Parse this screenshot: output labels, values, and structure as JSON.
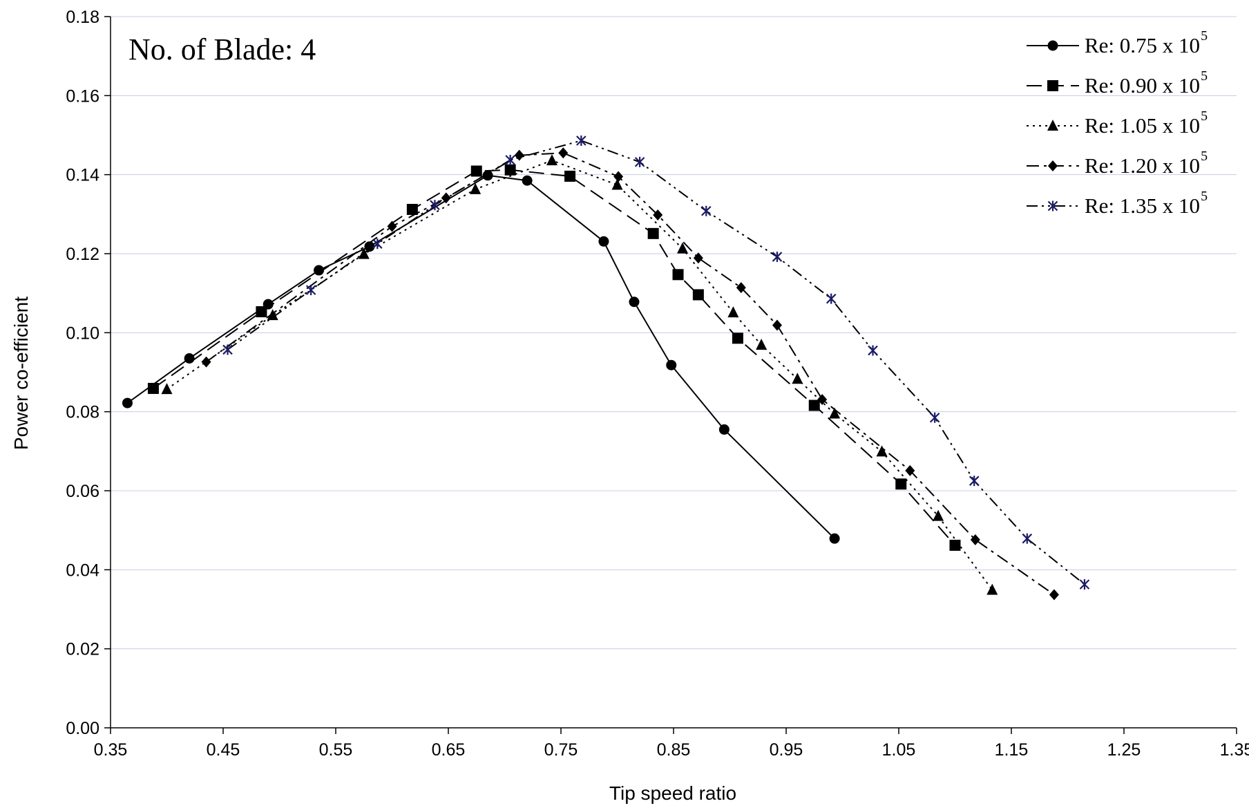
{
  "chart_data": {
    "type": "line",
    "annotation": "No. of Blade: 4",
    "xlabel": "Tip speed ratio",
    "ylabel": "Power co-efficient",
    "xlim": [
      0.35,
      1.35
    ],
    "ylim": [
      0,
      0.18
    ],
    "xticks": [
      "0.35",
      "0.45",
      "0.55",
      "0.65",
      "0.75",
      "0.85",
      "0.95",
      "1.05",
      "1.15",
      "1.25",
      "1.35"
    ],
    "yticks": [
      "0.00",
      "0.02",
      "0.04",
      "0.06",
      "0.08",
      "0.10",
      "0.12",
      "0.14",
      "0.16",
      "0.18"
    ],
    "grid": "horizontal",
    "legend_position": "top-right",
    "series": [
      {
        "name": "Re: 0.75 x 10",
        "exponent": "5",
        "marker": "circle",
        "dash": "solid",
        "points": [
          [
            0.365,
            0.0822
          ],
          [
            0.42,
            0.0935
          ],
          [
            0.49,
            0.1072
          ],
          [
            0.535,
            0.1158
          ],
          [
            0.58,
            0.1218
          ],
          [
            0.685,
            0.1398
          ],
          [
            0.72,
            0.1385
          ],
          [
            0.788,
            0.1231
          ],
          [
            0.815,
            0.1078
          ],
          [
            0.848,
            0.0918
          ],
          [
            0.895,
            0.0755
          ],
          [
            0.993,
            0.0479
          ]
        ]
      },
      {
        "name": "Re: 0.90 x 10",
        "exponent": "5",
        "marker": "square",
        "dash": "long-dash",
        "points": [
          [
            0.388,
            0.0859
          ],
          [
            0.484,
            0.1053
          ],
          [
            0.618,
            0.1312
          ],
          [
            0.675,
            0.1409
          ],
          [
            0.705,
            0.1412
          ],
          [
            0.758,
            0.1396
          ],
          [
            0.832,
            0.1251
          ],
          [
            0.854,
            0.1147
          ],
          [
            0.872,
            0.1096
          ],
          [
            0.907,
            0.0986
          ],
          [
            0.975,
            0.0816
          ],
          [
            1.052,
            0.0617
          ],
          [
            1.1,
            0.0462
          ]
        ]
      },
      {
        "name": "Re: 1.05 x 10",
        "exponent": "5",
        "marker": "triangle",
        "dash": "dotted",
        "points": [
          [
            0.4,
            0.0857
          ],
          [
            0.494,
            0.1044
          ],
          [
            0.575,
            0.1199
          ],
          [
            0.674,
            0.1363
          ],
          [
            0.742,
            0.1436
          ],
          [
            0.8,
            0.1374
          ],
          [
            0.858,
            0.1213
          ],
          [
            0.903,
            0.1051
          ],
          [
            0.928,
            0.0969
          ],
          [
            0.96,
            0.0883
          ],
          [
            0.993,
            0.0795
          ],
          [
            1.035,
            0.0699
          ],
          [
            1.085,
            0.0536
          ],
          [
            1.133,
            0.0349
          ]
        ]
      },
      {
        "name": "Re: 1.20 x 10",
        "exponent": "5",
        "marker": "diamond",
        "dash": "dash-dot",
        "points": [
          [
            0.435,
            0.0926
          ],
          [
            0.6,
            0.1269
          ],
          [
            0.648,
            0.1341
          ],
          [
            0.713,
            0.1449
          ],
          [
            0.752,
            0.1455
          ],
          [
            0.801,
            0.1395
          ],
          [
            0.836,
            0.1298
          ],
          [
            0.872,
            0.1189
          ],
          [
            0.91,
            0.1114
          ],
          [
            0.942,
            0.1019
          ],
          [
            0.982,
            0.0831
          ],
          [
            1.06,
            0.0651
          ],
          [
            1.118,
            0.0476
          ],
          [
            1.188,
            0.0337
          ]
        ]
      },
      {
        "name": "Re: 1.35 x 10",
        "exponent": "5",
        "marker": "star",
        "dash": "dash-dot-dot",
        "points": [
          [
            0.454,
            0.0957
          ],
          [
            0.528,
            0.1108
          ],
          [
            0.587,
            0.1225
          ],
          [
            0.638,
            0.1323
          ],
          [
            0.705,
            0.1437
          ],
          [
            0.768,
            0.1486
          ],
          [
            0.82,
            0.1432
          ],
          [
            0.879,
            0.1308
          ],
          [
            0.942,
            0.1192
          ],
          [
            0.99,
            0.1086
          ],
          [
            1.027,
            0.0955
          ],
          [
            1.082,
            0.0785
          ],
          [
            1.117,
            0.0625
          ],
          [
            1.164,
            0.0479
          ],
          [
            1.215,
            0.0363
          ]
        ]
      }
    ]
  }
}
